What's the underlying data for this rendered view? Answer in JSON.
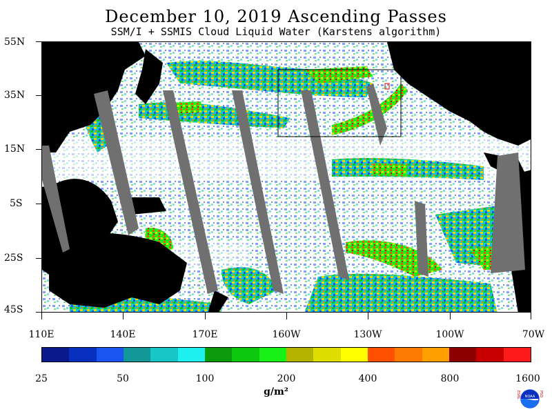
{
  "title": "December 10, 2019  Ascending Passes",
  "subtitle": "SSM/I + SSMIS Cloud Liquid Water (Karstens algorithm)",
  "map": {
    "lat_labels": [
      "55N",
      "35N",
      "15N",
      "5S",
      "25S",
      "45S"
    ],
    "lon_labels": [
      "110E",
      "140E",
      "170E",
      "160W",
      "130W",
      "100W",
      "70W"
    ],
    "land_color": "#000000",
    "missing_swath_color": "#707070",
    "ocean_clear_color": "#ffffff"
  },
  "colorbar": {
    "tick_labels": [
      "25",
      "50",
      "100",
      "200",
      "400",
      "800",
      "1600"
    ],
    "units": "g/m²",
    "colors": [
      "#0a1a8c",
      "#0830c0",
      "#1a55f0",
      "#139898",
      "#19c6c6",
      "#1ef0f0",
      "#0a9a0a",
      "#0ec80e",
      "#18f018",
      "#b4b400",
      "#dede00",
      "#ffff00",
      "#ff5000",
      "#ff7a00",
      "#ffa000",
      "#8c0000",
      "#c80000",
      "#ff1a1a"
    ]
  },
  "logo": {
    "left_text": "ESRL",
    "right_text": "PSD",
    "center_text": "NOAA"
  }
}
